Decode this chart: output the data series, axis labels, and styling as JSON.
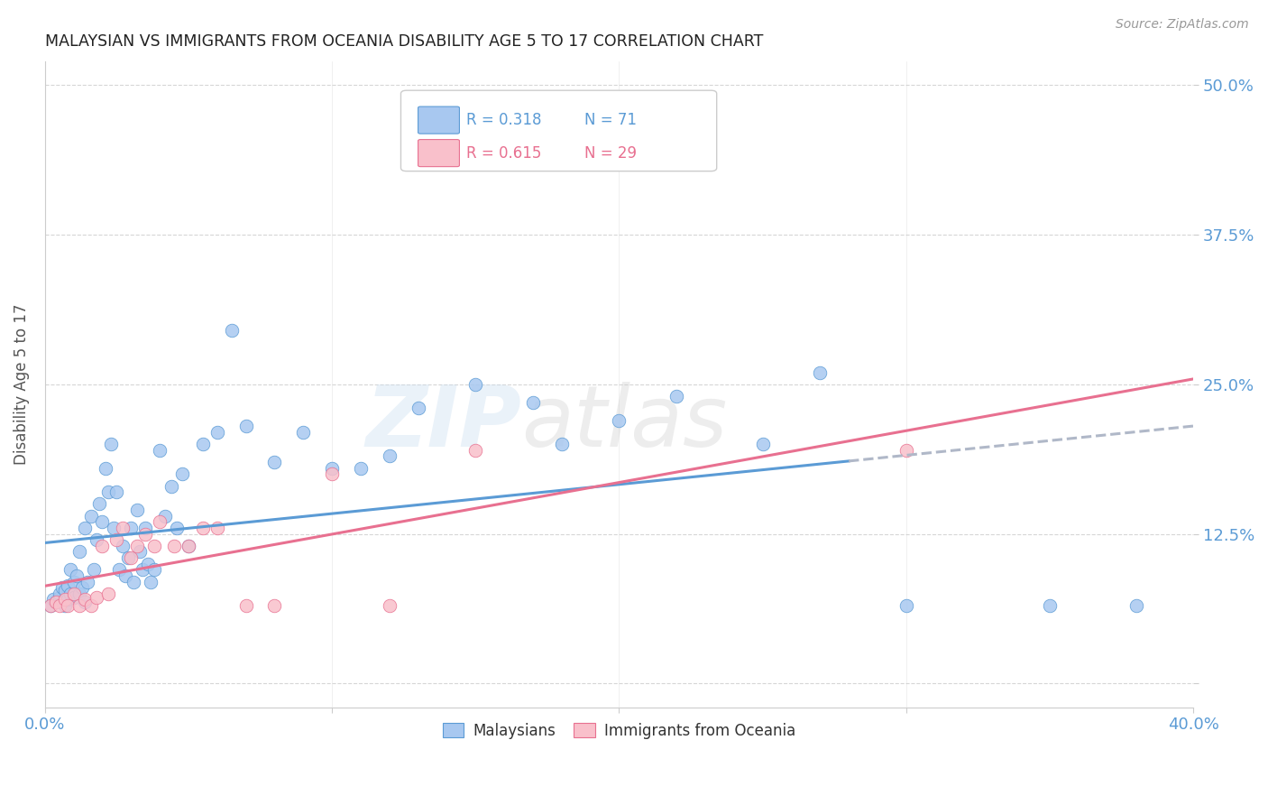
{
  "title": "MALAYSIAN VS IMMIGRANTS FROM OCEANIA DISABILITY AGE 5 TO 17 CORRELATION CHART",
  "source": "Source: ZipAtlas.com",
  "ylabel": "Disability Age 5 to 17",
  "xlim": [
    0.0,
    0.4
  ],
  "ylim": [
    -0.02,
    0.52
  ],
  "background_color": "#ffffff",
  "grid_color": "#cccccc",
  "watermark_zip": "ZIP",
  "watermark_atlas": "atlas",
  "legend_r1": "R = 0.318",
  "legend_n1": "N = 71",
  "legend_r2": "R = 0.615",
  "legend_n2": "N = 29",
  "blue_fill": "#a8c8f0",
  "blue_edge": "#5b9bd5",
  "pink_fill": "#f9c0cb",
  "pink_edge": "#e87090",
  "blue_line": "#5b9bd5",
  "pink_line": "#e87090",
  "dash_color": "#b0b8c8",
  "tick_color": "#5b9bd5",
  "title_color": "#222222",
  "source_color": "#999999",
  "ylabel_color": "#555555",
  "malaysians_x": [
    0.002,
    0.003,
    0.004,
    0.005,
    0.005,
    0.006,
    0.006,
    0.007,
    0.007,
    0.008,
    0.008,
    0.009,
    0.009,
    0.01,
    0.01,
    0.011,
    0.012,
    0.012,
    0.013,
    0.014,
    0.014,
    0.015,
    0.016,
    0.017,
    0.018,
    0.019,
    0.02,
    0.021,
    0.022,
    0.023,
    0.024,
    0.025,
    0.026,
    0.027,
    0.028,
    0.029,
    0.03,
    0.031,
    0.032,
    0.033,
    0.034,
    0.035,
    0.036,
    0.037,
    0.038,
    0.04,
    0.042,
    0.044,
    0.046,
    0.048,
    0.05,
    0.055,
    0.06,
    0.065,
    0.07,
    0.08,
    0.09,
    0.1,
    0.11,
    0.12,
    0.13,
    0.15,
    0.17,
    0.18,
    0.2,
    0.22,
    0.25,
    0.27,
    0.3,
    0.35,
    0.38
  ],
  "malaysians_y": [
    0.065,
    0.07,
    0.068,
    0.072,
    0.075,
    0.068,
    0.08,
    0.065,
    0.078,
    0.07,
    0.082,
    0.075,
    0.095,
    0.072,
    0.085,
    0.09,
    0.075,
    0.11,
    0.08,
    0.068,
    0.13,
    0.085,
    0.14,
    0.095,
    0.12,
    0.15,
    0.135,
    0.18,
    0.16,
    0.2,
    0.13,
    0.16,
    0.095,
    0.115,
    0.09,
    0.105,
    0.13,
    0.085,
    0.145,
    0.11,
    0.095,
    0.13,
    0.1,
    0.085,
    0.095,
    0.195,
    0.14,
    0.165,
    0.13,
    0.175,
    0.115,
    0.2,
    0.21,
    0.295,
    0.215,
    0.185,
    0.21,
    0.18,
    0.18,
    0.19,
    0.23,
    0.25,
    0.235,
    0.2,
    0.22,
    0.24,
    0.2,
    0.26,
    0.065,
    0.065,
    0.065
  ],
  "oceania_x": [
    0.002,
    0.004,
    0.005,
    0.007,
    0.008,
    0.01,
    0.012,
    0.014,
    0.016,
    0.018,
    0.02,
    0.022,
    0.025,
    0.027,
    0.03,
    0.032,
    0.035,
    0.038,
    0.04,
    0.045,
    0.05,
    0.055,
    0.06,
    0.07,
    0.08,
    0.1,
    0.12,
    0.15,
    0.3
  ],
  "oceania_y": [
    0.065,
    0.068,
    0.065,
    0.07,
    0.065,
    0.075,
    0.065,
    0.07,
    0.065,
    0.072,
    0.115,
    0.075,
    0.12,
    0.13,
    0.105,
    0.115,
    0.125,
    0.115,
    0.135,
    0.115,
    0.115,
    0.13,
    0.13,
    0.065,
    0.065,
    0.175,
    0.065,
    0.195,
    0.195
  ]
}
